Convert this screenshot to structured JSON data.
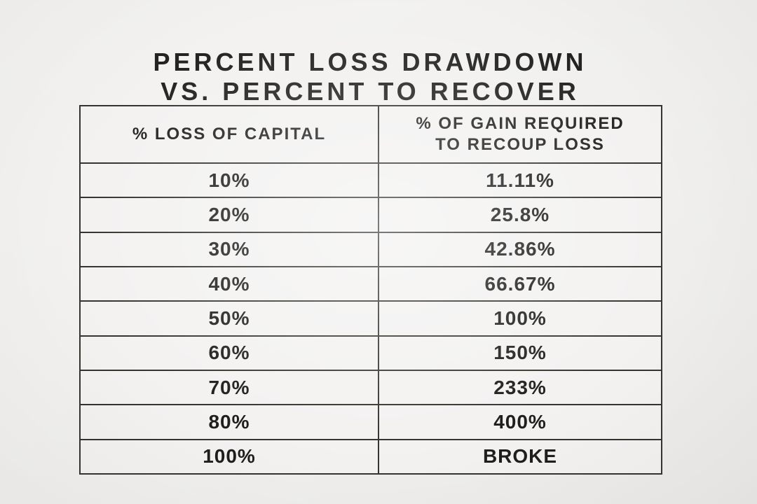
{
  "title": {
    "line1": "PERCENT LOSS DRAWDOWN",
    "line2": "VS. PERCENT TO RECOVER"
  },
  "chart_data": {
    "type": "table",
    "title": "PERCENT LOSS DRAWDOWN VS. PERCENT TO RECOVER",
    "columns": [
      "% LOSS OF CAPITAL",
      "% OF GAIN REQUIRED TO RECOUP LOSS"
    ],
    "rows": [
      [
        "10%",
        "11.11%"
      ],
      [
        "20%",
        "25.8%"
      ],
      [
        "30%",
        "42.86%"
      ],
      [
        "40%",
        "66.67%"
      ],
      [
        "50%",
        "100%"
      ],
      [
        "60%",
        "150%"
      ],
      [
        "70%",
        "233%"
      ],
      [
        "80%",
        "400%"
      ],
      [
        "100%",
        "BROKE"
      ]
    ],
    "legend": "none",
    "grid": "full cell borders"
  },
  "colors": {
    "background": "#f1f0ee",
    "cell_fill": "#f3f2f1",
    "border": "#35352f",
    "text": "#1e1e1c"
  }
}
